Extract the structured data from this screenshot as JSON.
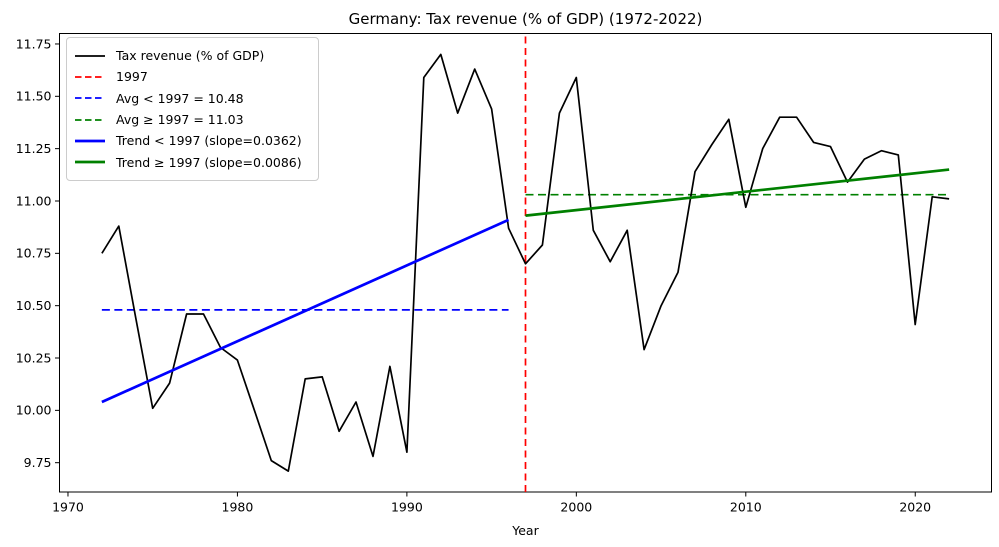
{
  "chart_data": {
    "type": "line",
    "title": "Germany: Tax revenue (% of GDP) (1972-2022)",
    "xlabel": "Year",
    "ylabel": "",
    "xlim": [
      1969.5,
      2024.5
    ],
    "ylim": [
      9.61,
      11.8
    ],
    "x_ticks": [
      1970,
      1980,
      1990,
      2000,
      2010,
      2020
    ],
    "y_ticks": [
      9.75,
      10.0,
      10.25,
      10.5,
      10.75,
      11.0,
      11.25,
      11.5,
      11.75
    ],
    "grid": false,
    "legend_position": "upper left",
    "colors": {
      "tax_revenue": "#000000",
      "vline_1997": "#ff0000",
      "avg_pre_1997": "#0000ff",
      "avg_post_1997": "#008000",
      "trend_pre_1997": "#0000ff",
      "trend_post_1997": "#008000"
    },
    "series": [
      {
        "id": "tax_revenue",
        "name": "Tax revenue (% of GDP)",
        "kind": "line",
        "color": "#000000",
        "dash": "solid",
        "width": 1.7,
        "x": [
          1972,
          1973,
          1974,
          1975,
          1976,
          1977,
          1978,
          1979,
          1980,
          1981,
          1982,
          1983,
          1984,
          1985,
          1986,
          1987,
          1988,
          1989,
          1990,
          1991,
          1992,
          1993,
          1994,
          1995,
          1996,
          1997,
          1998,
          1999,
          2000,
          2001,
          2002,
          2003,
          2004,
          2005,
          2006,
          2007,
          2008,
          2009,
          2010,
          2011,
          2012,
          2013,
          2014,
          2015,
          2016,
          2017,
          2018,
          2019,
          2020,
          2021,
          2022
        ],
        "values": [
          10.75,
          10.88,
          10.44,
          10.01,
          10.13,
          10.46,
          10.46,
          10.3,
          10.24,
          10.0,
          9.76,
          9.71,
          10.15,
          10.16,
          9.9,
          10.04,
          9.78,
          10.21,
          9.8,
          11.59,
          11.7,
          11.42,
          11.63,
          11.44,
          10.87,
          10.7,
          10.79,
          11.42,
          11.59,
          10.86,
          10.71,
          10.86,
          10.29,
          10.5,
          10.66,
          11.14,
          11.27,
          11.39,
          10.97,
          11.25,
          11.4,
          11.4,
          11.28,
          11.26,
          11.09,
          11.2,
          11.24,
          11.22,
          10.41,
          11.02,
          11.01
        ]
      },
      {
        "id": "vline_1997",
        "name": "1997",
        "kind": "vline",
        "color": "#ff0000",
        "dash": "dashed",
        "width": 1.7,
        "x_value": 1997
      },
      {
        "id": "avg_pre_1997",
        "name": "Avg < 1997 = 10.48",
        "kind": "hline",
        "color": "#0000ff",
        "dash": "dashed",
        "width": 1.7,
        "value": 10.48,
        "x_range": [
          1972,
          1996
        ]
      },
      {
        "id": "avg_post_1997",
        "name": "Avg ≥ 1997 = 11.03",
        "kind": "hline",
        "color": "#008000",
        "dash": "dashed",
        "width": 1.7,
        "value": 11.03,
        "x_range": [
          1997,
          2022
        ]
      },
      {
        "id": "trend_pre_1997",
        "name": "Trend < 1997 (slope=0.0362)",
        "kind": "segment",
        "color": "#0000ff",
        "dash": "solid",
        "width": 2.7,
        "x": [
          1972,
          1996
        ],
        "values": [
          10.04,
          10.91
        ]
      },
      {
        "id": "trend_post_1997",
        "name": "Trend ≥ 1997 (slope=0.0086)",
        "kind": "segment",
        "color": "#008000",
        "dash": "solid",
        "width": 2.7,
        "x": [
          1997,
          2022
        ],
        "values": [
          10.93,
          11.15
        ]
      }
    ],
    "legend_entries": [
      {
        "label": "Tax revenue (% of GDP)",
        "color": "#000000",
        "dash": "solid",
        "width": 1.7
      },
      {
        "label": "1997",
        "color": "#ff0000",
        "dash": "dashed",
        "width": 1.7
      },
      {
        "label": "Avg < 1997 = 10.48",
        "color": "#0000ff",
        "dash": "dashed",
        "width": 1.7
      },
      {
        "label": "Avg ≥ 1997 = 11.03",
        "color": "#008000",
        "dash": "dashed",
        "width": 1.7
      },
      {
        "label": "Trend < 1997 (slope=0.0362)",
        "color": "#0000ff",
        "dash": "solid",
        "width": 2.7
      },
      {
        "label": "Trend ≥ 1997 (slope=0.0086)",
        "color": "#008000",
        "dash": "solid",
        "width": 2.7
      }
    ]
  }
}
